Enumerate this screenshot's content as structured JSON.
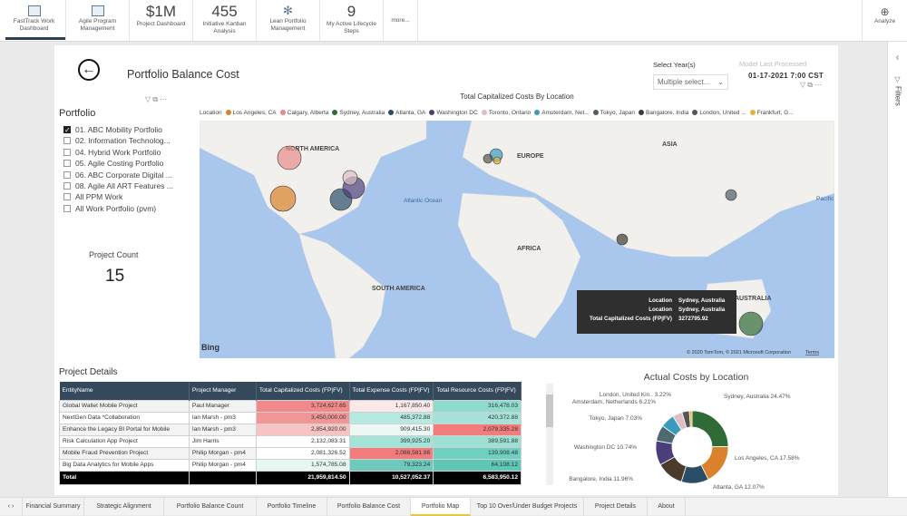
{
  "ribbon": {
    "tiles": [
      {
        "label": "FastTrack Work Dashboard",
        "icon": "dashboard-icon"
      },
      {
        "label": "Agile Program Management",
        "icon": "dashboard-icon"
      },
      {
        "value": "$1M",
        "label": "Project Dashboard"
      },
      {
        "value": "455",
        "label": "Initiative Kanban Analysis"
      },
      {
        "label": "Lean Portfolio Management",
        "icon": "atom-icon"
      },
      {
        "value": "9",
        "label": "My Active Lifecycle Steps"
      },
      {
        "label": "more..."
      }
    ],
    "analyze": "Analyze"
  },
  "header": {
    "title": "Portfolio Balance Cost",
    "select_label": "Select Year(s)",
    "select_value": "Multiple select...",
    "model_label": "Model Last Processed",
    "model_value": "01-17-2021 7:00 CST"
  },
  "slicer": {
    "title": "Portfolio",
    "items": [
      {
        "label": "01. ABC Mobility Portfolio",
        "checked": true
      },
      {
        "label": "02. Information Technolog...",
        "checked": false
      },
      {
        "label": "04. Hybrid Work Portfolio",
        "checked": false
      },
      {
        "label": "05. Agile Costing Portfolio",
        "checked": false
      },
      {
        "label": "06. ABC Corporate Digital ...",
        "checked": false
      },
      {
        "label": "08. Agile All ART Features ...",
        "checked": false
      },
      {
        "label": "All PPM Work",
        "checked": false
      },
      {
        "label": "All Work Portfolio (pvm)",
        "checked": false
      }
    ]
  },
  "count": {
    "label": "Project Count",
    "value": "15"
  },
  "map": {
    "title": "Total Capitalized Costs By Location",
    "legend_title": "Location",
    "legend": [
      {
        "label": "Los Angeles, CA",
        "color": "#d9822b"
      },
      {
        "label": "Calgary, Alberta",
        "color": "#e88a8a"
      },
      {
        "label": "Sydney, Australia",
        "color": "#2e6b36"
      },
      {
        "label": "Atlanta, GA",
        "color": "#2b4d68"
      },
      {
        "label": "Washington DC",
        "color": "#4a3f7a"
      },
      {
        "label": "Toronto, Ontario",
        "color": "#dcbfc5"
      },
      {
        "label": "Amsterdam, Net...",
        "color": "#3a9bbf"
      },
      {
        "label": "Tokyo, Japan",
        "color": "#4d5e66"
      },
      {
        "label": "Bangalore, India",
        "color": "#3f3a33"
      },
      {
        "label": "London, United ...",
        "color": "#555555"
      },
      {
        "label": "Frankfurt, G...",
        "color": "#e6b23a"
      }
    ],
    "labels": [
      "NORTH AMERICA",
      "EUROPE",
      "ASIA",
      "AFRICA",
      "SOUTH AMERICA",
      "AUSTRALIA",
      "Atlantic Ocean",
      "Pacific Ocean"
    ],
    "bing": "Bing",
    "copyright": "© 2020 TomTom, © 2021 Microsoft Corporation",
    "terms": "Terms",
    "tooltip": [
      {
        "k": "Location",
        "v": "Sydney, Australia"
      },
      {
        "k": "Location",
        "v": "Sydney, Australia"
      },
      {
        "k": "Total Capitalized Costs (FP|FV)",
        "v": "3272795.92"
      }
    ]
  },
  "table": {
    "title": "Project Details",
    "headers": [
      "EntityName",
      "Project Manager",
      "Total Capitalized Costs (FP|FV)",
      "Total Expense Costs (FP|FV)",
      "Total Resource Costs (FP|FV)"
    ],
    "rows": [
      {
        "cells": [
          "Global Wallet Mobile Project",
          "Paul Manager",
          "3,724,627.65",
          "1,167,850.40",
          "316,478.03"
        ],
        "colors": [
          "#f08a8a",
          "#fbe9e9",
          "#8fdccf"
        ]
      },
      {
        "cells": [
          "NextGen Data *Collaboration",
          "Ian Marsh - pm3",
          "3,450,000.00",
          "485,372.88",
          "420,372.88"
        ],
        "colors": [
          "#f29595",
          "#b6e9df",
          "#a5e3d8"
        ]
      },
      {
        "cells": [
          "Enhance the Legacy BI Portal for Mobile",
          "Ian Marsh - pm3",
          "2,854,920.00",
          "909,415.30",
          "2,079,335.28"
        ],
        "colors": [
          "#f7c4c4",
          "#edf8f5",
          "#f07c7c"
        ]
      },
      {
        "cells": [
          "Risk Calculation App Project",
          "Jim Harris",
          "2,132,083.31",
          "399,925.20",
          "389,591.88"
        ],
        "colors": [
          "#ffffff",
          "#a4e4d8",
          "#9ee0d4"
        ]
      },
      {
        "cells": [
          "Mobile Fraud Prevention Project",
          "Philip Morgan - pm4",
          "2,081,326.52",
          "2,088,581.98",
          "139,908.48"
        ],
        "colors": [
          "#ffffff",
          "#f07c7c",
          "#6fd0c2"
        ]
      },
      {
        "cells": [
          "Big Data Analytics for Mobile Apps",
          "Philip Morgan - pm4",
          "1,574,785.08",
          "79,323.24",
          "64,108.12"
        ],
        "colors": [
          "#e6f6f3",
          "#6cc9bb",
          "#5fc7b8"
        ]
      }
    ],
    "total": {
      "label": "Total",
      "values": [
        "21,959,814.50",
        "10,527,052.37",
        "6,583,950.12"
      ]
    }
  },
  "chart_data": {
    "type": "pie",
    "title": "Actual Costs by Location",
    "slices": [
      {
        "label": "Sydney, Australia",
        "value": 24.47,
        "text": "Sydney, Australia 24.47%",
        "color": "#2e6b36"
      },
      {
        "label": "Los Angeles, CA",
        "value": 17.58,
        "text": "Los Angeles, CA 17.58%",
        "color": "#d9822b"
      },
      {
        "label": "Atlanta, GA",
        "value": 12.07,
        "text": "Atlanta, GA 12.07%",
        "color": "#2b4d68"
      },
      {
        "label": "Bangalore, India",
        "value": 11.96,
        "text": "Bangalore, India 11.96%",
        "color": "#4a3b2a"
      },
      {
        "label": "Washington DC",
        "value": 10.74,
        "text": "Washington DC 10.74%",
        "color": "#4a3f7a"
      },
      {
        "label": "Tokyo, Japan",
        "value": 7.03,
        "text": "Tokyo, Japan 7.03%",
        "color": "#4d6a70"
      },
      {
        "label": "Amsterdam, Netherlands",
        "value": 6.21,
        "text": "Amsterdam, Netherlands 6.21%",
        "color": "#3a9bbf"
      },
      {
        "label": "Toronto, Ontario",
        "value": 4.3,
        "text": "",
        "color": "#dcbfc5"
      },
      {
        "label": "London, United Kin..",
        "value": 3.22,
        "text": "London, United Kin.. 3.22%",
        "color": "#555555"
      },
      {
        "label": "Frankfurt",
        "value": 1.2,
        "text": "",
        "color": "#e6b23a"
      }
    ]
  },
  "tabs": [
    "Financial Summary",
    "Strategic Alignment",
    "Portfolio Balance Count",
    "Portfolio Timeline",
    "Portfolio Balance Cost",
    "Portfolio Map",
    "Top 10 Over/Under Budget Projects",
    "Project Details",
    "About"
  ],
  "active_tab": "Portfolio Map",
  "filters_label": "Filters"
}
